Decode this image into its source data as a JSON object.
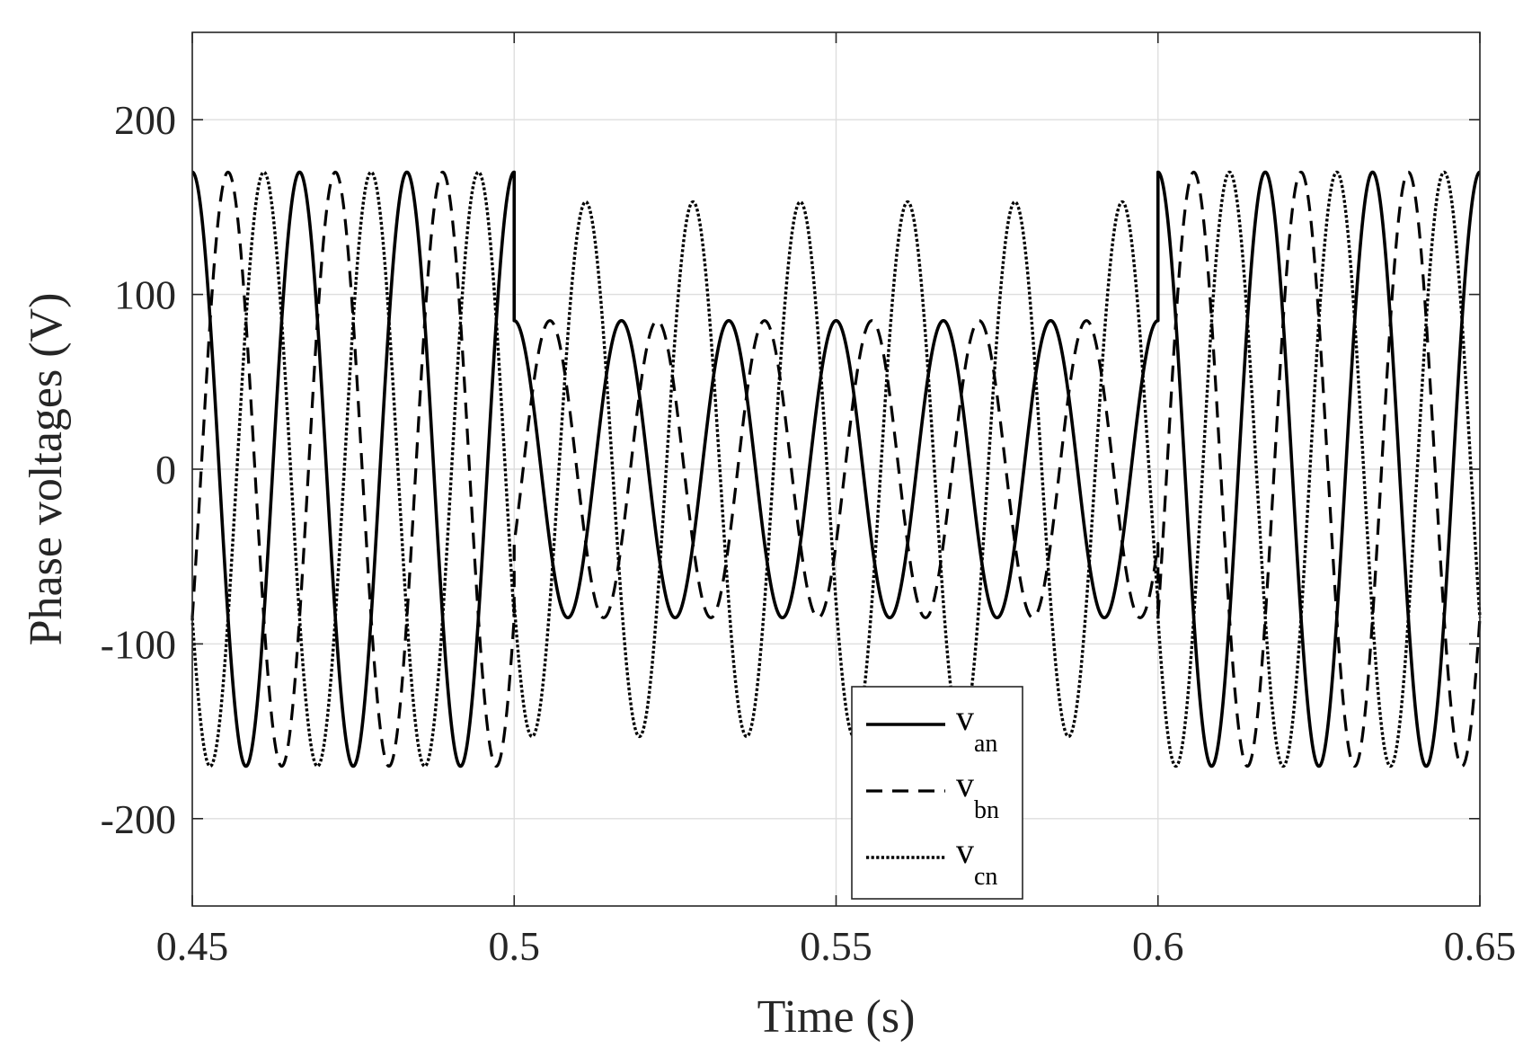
{
  "chart_data": {
    "type": "line",
    "title": "",
    "xlabel": "Time (s)",
    "ylabel": "Phase voltages (V)",
    "xlim": [
      0.45,
      0.65
    ],
    "ylim": [
      -250,
      250
    ],
    "xticks": [
      0.45,
      0.5,
      0.55,
      0.6,
      0.65
    ],
    "xtick_labels": [
      "0.45",
      "0.5",
      "0.55",
      "0.6",
      "0.65"
    ],
    "yticks": [
      -200,
      -100,
      0,
      100,
      200
    ],
    "ytick_labels": [
      "-200",
      "-100",
      "0",
      "100",
      "200"
    ],
    "grid": true,
    "legend_position": "bottom-center",
    "frequency_hz": 60,
    "segments": [
      {
        "t_start": 0.45,
        "t_end": 0.5,
        "amplitude": 170
      },
      {
        "t_start": 0.5,
        "t_end": 0.6,
        "amplitude": 85
      },
      {
        "t_start": 0.6,
        "t_end": 0.65,
        "amplitude": 170
      }
    ],
    "series": [
      {
        "name": "v",
        "subscript": "an",
        "line_style": "solid",
        "phase_deg": 0,
        "color": "#000000",
        "sag_amplitude": 85
      },
      {
        "name": "v",
        "subscript": "bn",
        "line_style": "dashed",
        "phase_deg": -120,
        "color": "#000000",
        "sag_amplitude": 85
      },
      {
        "name": "v",
        "subscript": "cn",
        "line_style": "dotted",
        "phase_deg": 120,
        "color": "#000000",
        "sag_amplitude": 153
      }
    ]
  }
}
